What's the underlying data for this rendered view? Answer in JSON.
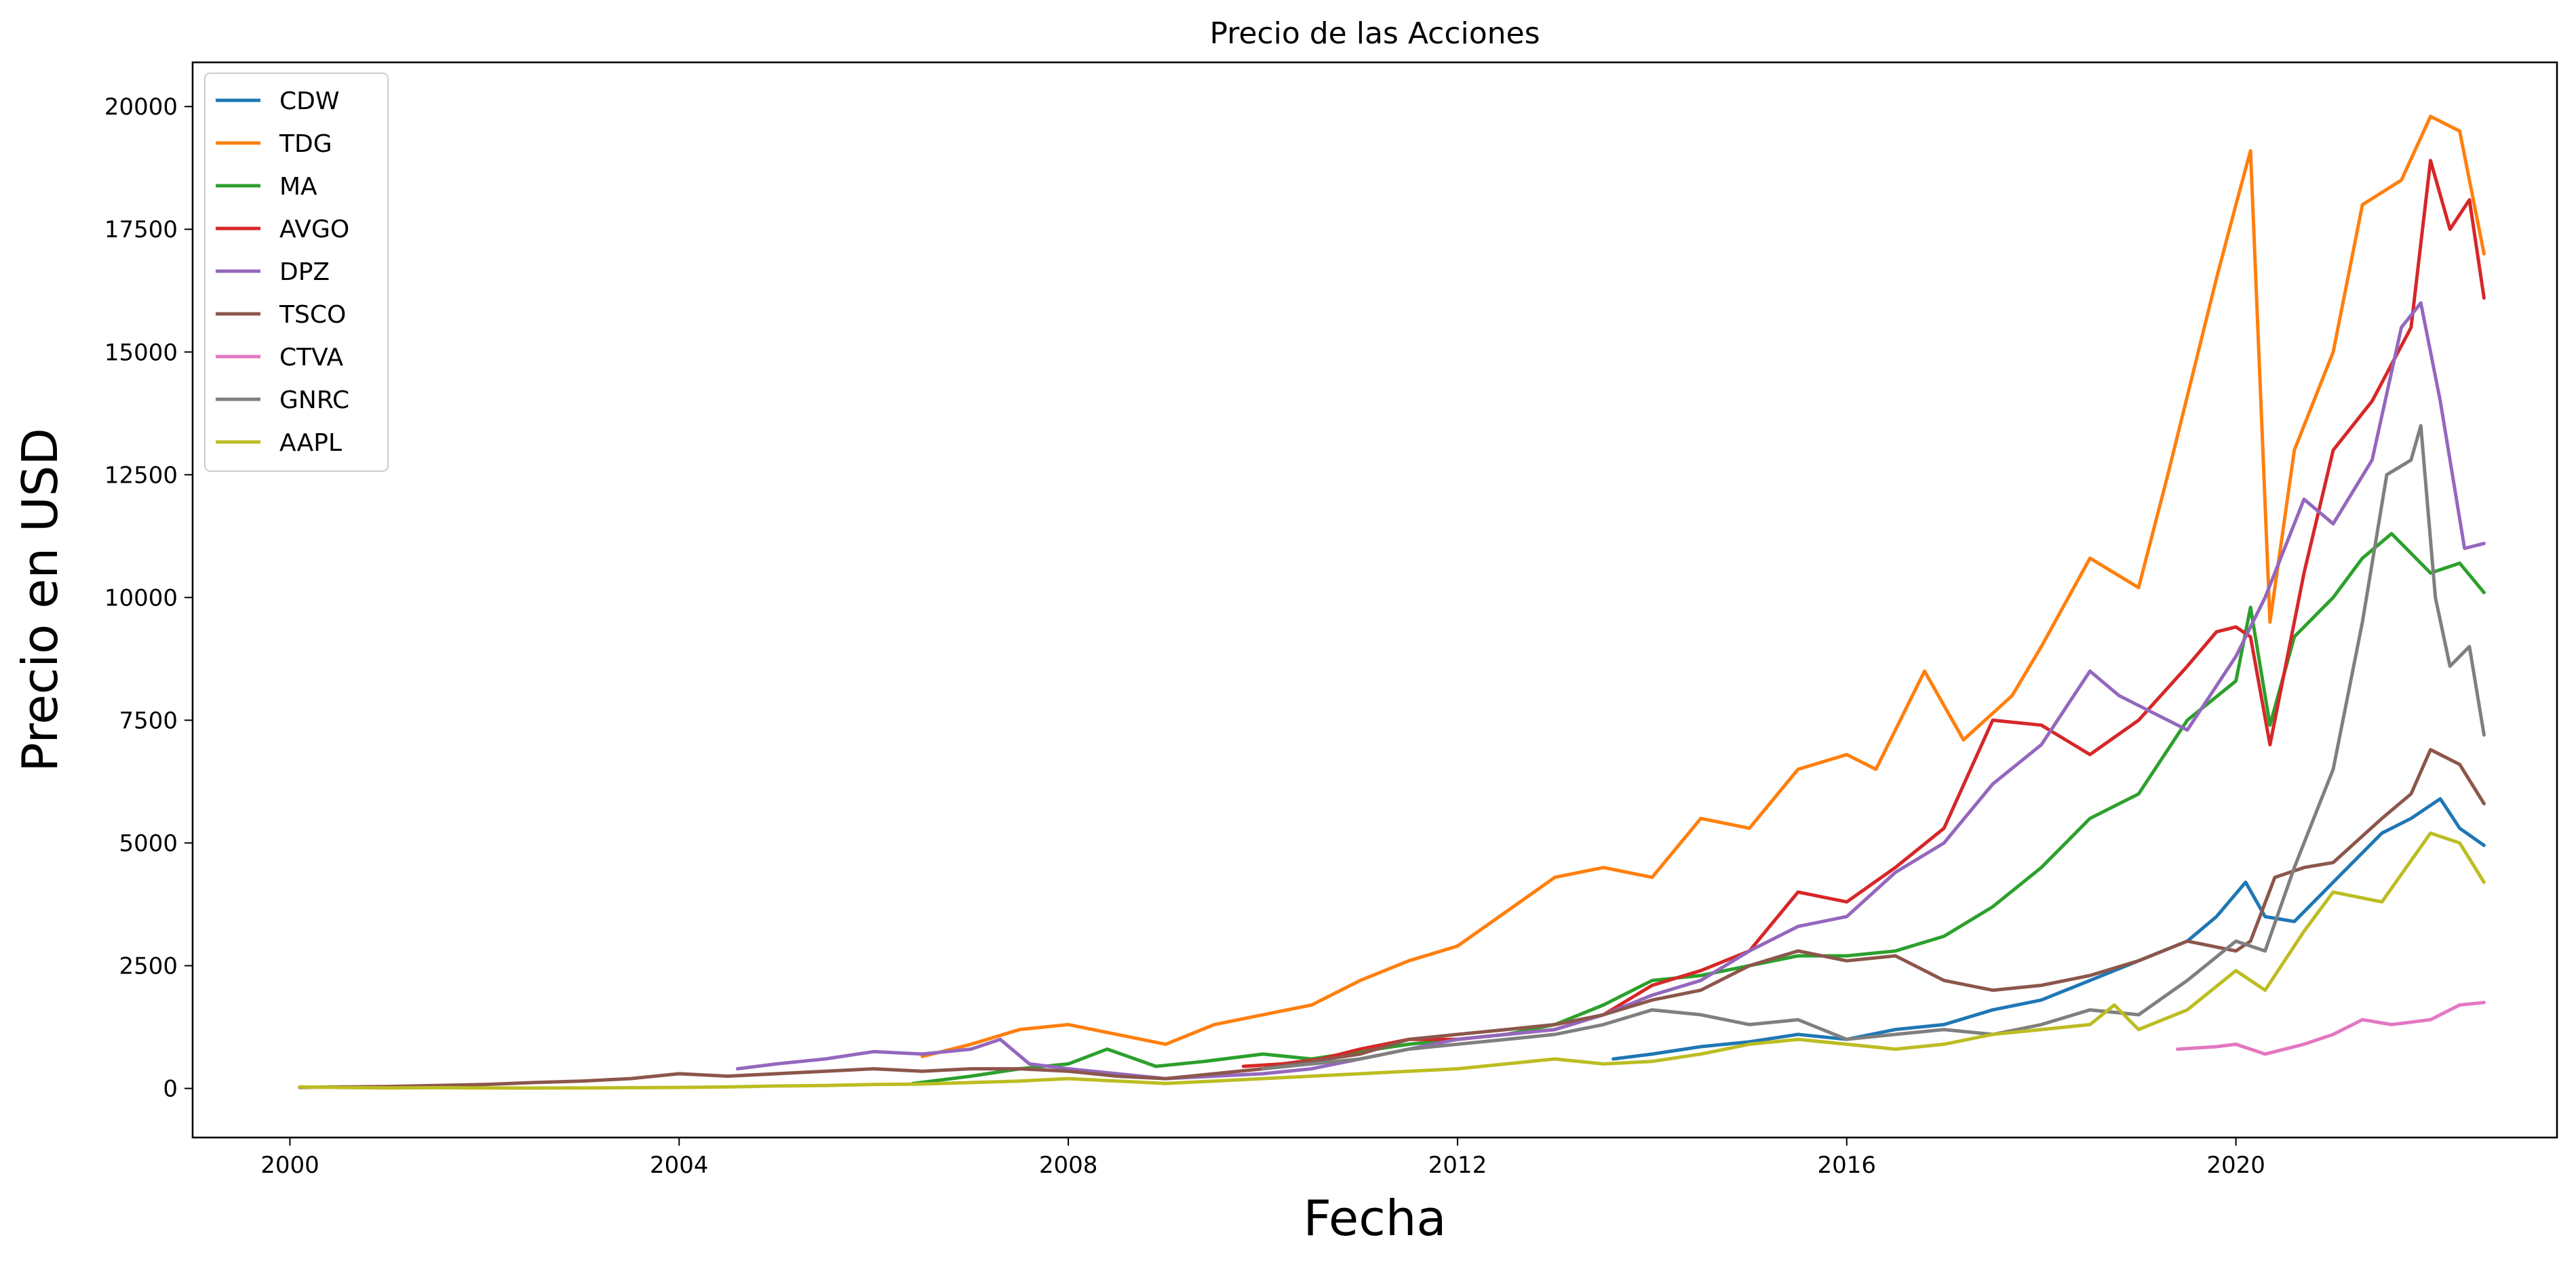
{
  "chart_data": {
    "type": "line",
    "title": "Precio de las Acciones",
    "xlabel": "Fecha",
    "ylabel": "Precio en USD",
    "x_ticks": [
      "2000",
      "2004",
      "2008",
      "2012",
      "2016",
      "2020"
    ],
    "y_ticks": [
      "0",
      "2500",
      "5000",
      "7500",
      "10000",
      "12500",
      "15000",
      "17500",
      "20000"
    ],
    "xlim": [
      1999.0,
      2023.3
    ],
    "ylim": [
      -1000,
      20900
    ],
    "grid": false,
    "legend_position": "top-left",
    "series": [
      {
        "name": "CDW",
        "color": "#1f77b4",
        "x": [
          2013.6,
          2014.0,
          2014.5,
          2015.0,
          2015.5,
          2016.0,
          2016.5,
          2017.0,
          2017.5,
          2018.0,
          2018.5,
          2019.0,
          2019.5,
          2019.8,
          2020.1,
          2020.3,
          2020.6,
          2021.0,
          2021.5,
          2021.8,
          2022.1,
          2022.3,
          2022.55
        ],
        "y": [
          600,
          700,
          850,
          950,
          1100,
          1000,
          1200,
          1300,
          1600,
          1800,
          2200,
          2600,
          3000,
          3500,
          4200,
          3500,
          3400,
          4200,
          5200,
          5500,
          5900,
          5300,
          4950
        ]
      },
      {
        "name": "TDG",
        "color": "#ff7f0e",
        "x": [
          2006.5,
          2007.0,
          2007.5,
          2008.0,
          2008.5,
          2009.0,
          2009.5,
          2010.0,
          2010.5,
          2011.0,
          2011.5,
          2012.0,
          2012.5,
          2013.0,
          2013.5,
          2014.0,
          2014.5,
          2015.0,
          2015.5,
          2016.0,
          2016.3,
          2016.8,
          2017.2,
          2017.7,
          2018.0,
          2018.5,
          2019.0,
          2019.3,
          2019.8,
          2020.0,
          2020.15,
          2020.35,
          2020.6,
          2021.0,
          2021.3,
          2021.7,
          2022.0,
          2022.3,
          2022.55
        ],
        "y": [
          650,
          900,
          1200,
          1300,
          1100,
          900,
          1300,
          1500,
          1700,
          2200,
          2600,
          2900,
          3600,
          4300,
          4500,
          4300,
          5500,
          5300,
          6500,
          6800,
          6500,
          8500,
          7100,
          8000,
          9000,
          10800,
          10200,
          12500,
          16500,
          18000,
          19100,
          9500,
          13000,
          15000,
          18000,
          18500,
          19800,
          19500,
          17000
        ]
      },
      {
        "name": "MA",
        "color": "#2ca02c",
        "x": [
          2006.4,
          2007.0,
          2007.5,
          2008.0,
          2008.4,
          2008.9,
          2009.4,
          2010.0,
          2010.5,
          2011.0,
          2011.5,
          2012.0,
          2012.5,
          2013.0,
          2013.5,
          2014.0,
          2014.5,
          2015.0,
          2015.5,
          2016.0,
          2016.5,
          2017.0,
          2017.5,
          2018.0,
          2018.5,
          2019.0,
          2019.5,
          2020.0,
          2020.15,
          2020.35,
          2020.6,
          2021.0,
          2021.3,
          2021.6,
          2022.0,
          2022.3,
          2022.55
        ],
        "y": [
          100,
          250,
          400,
          500,
          800,
          450,
          550,
          700,
          600,
          750,
          900,
          1000,
          1100,
          1300,
          1700,
          2200,
          2300,
          2500,
          2700,
          2700,
          2800,
          3100,
          3700,
          4500,
          5500,
          6000,
          7500,
          8300,
          9800,
          7400,
          9200,
          10000,
          10800,
          11300,
          10500,
          10700,
          10100
        ]
      },
      {
        "name": "AVGO",
        "color": "#d62728",
        "x": [
          2009.8,
          2010.2,
          2010.6,
          2011.0,
          2011.5,
          2012.0,
          2012.5,
          2013.0,
          2013.5,
          2014.0,
          2014.5,
          2015.0,
          2015.5,
          2016.0,
          2016.5,
          2017.0,
          2017.5,
          2018.0,
          2018.5,
          2019.0,
          2019.5,
          2019.8,
          2020.0,
          2020.15,
          2020.35,
          2020.7,
          2021.0,
          2021.4,
          2021.8,
          2022.0,
          2022.2,
          2022.4,
          2022.55
        ],
        "y": [
          450,
          500,
          600,
          800,
          1000,
          1000,
          1100,
          1200,
          1500,
          2100,
          2400,
          2800,
          4000,
          3800,
          4500,
          5300,
          7500,
          7400,
          6800,
          7500,
          8600,
          9300,
          9400,
          9200,
          7000,
          10500,
          13000,
          14000,
          15500,
          18900,
          17500,
          18100,
          16100
        ]
      },
      {
        "name": "DPZ",
        "color": "#9467bd",
        "x": [
          2004.6,
          2005.0,
          2005.5,
          2006.0,
          2006.5,
          2007.0,
          2007.3,
          2007.6,
          2008.0,
          2008.5,
          2009.0,
          2009.5,
          2010.0,
          2010.5,
          2011.0,
          2011.5,
          2012.0,
          2012.5,
          2013.0,
          2013.5,
          2014.0,
          2014.5,
          2015.0,
          2015.5,
          2016.0,
          2016.5,
          2017.0,
          2017.5,
          2018.0,
          2018.5,
          2018.8,
          2019.0,
          2019.5,
          2020.0,
          2020.3,
          2020.7,
          2021.0,
          2021.4,
          2021.7,
          2021.9,
          2022.1,
          2022.35,
          2022.55
        ],
        "y": [
          400,
          500,
          600,
          750,
          700,
          800,
          1000,
          500,
          400,
          300,
          200,
          250,
          300,
          400,
          600,
          800,
          1000,
          1100,
          1200,
          1500,
          1900,
          2200,
          2800,
          3300,
          3500,
          4400,
          5000,
          6200,
          7000,
          8500,
          8000,
          7800,
          7300,
          8800,
          10000,
          12000,
          11500,
          12800,
          15500,
          16000,
          14000,
          11000,
          11100
        ]
      },
      {
        "name": "TSCO",
        "color": "#8c564b",
        "x": [
          2000.1,
          2000.5,
          2001.0,
          2001.5,
          2002.0,
          2002.5,
          2003.0,
          2003.5,
          2004.0,
          2004.5,
          2005.0,
          2005.5,
          2006.0,
          2006.5,
          2007.0,
          2007.5,
          2008.0,
          2008.5,
          2009.0,
          2009.5,
          2010.0,
          2010.5,
          2011.0,
          2011.5,
          2012.0,
          2012.5,
          2013.0,
          2013.5,
          2014.0,
          2014.5,
          2015.0,
          2015.5,
          2016.0,
          2016.5,
          2017.0,
          2017.5,
          2018.0,
          2018.5,
          2019.0,
          2019.5,
          2020.0,
          2020.15,
          2020.4,
          2020.7,
          2021.0,
          2021.5,
          2021.8,
          2022.0,
          2022.3,
          2022.55
        ],
        "y": [
          20,
          30,
          40,
          60,
          80,
          120,
          150,
          200,
          300,
          250,
          300,
          350,
          400,
          350,
          400,
          400,
          350,
          250,
          200,
          300,
          400,
          550,
          700,
          1000,
          1100,
          1200,
          1300,
          1500,
          1800,
          2000,
          2500,
          2800,
          2600,
          2700,
          2200,
          2000,
          2100,
          2300,
          2600,
          3000,
          2800,
          3000,
          4300,
          4500,
          4600,
          5500,
          6000,
          6900,
          6600,
          5800
        ]
      },
      {
        "name": "CTVA",
        "color": "#e377c2",
        "x": [
          2019.4,
          2019.8,
          2020.0,
          2020.3,
          2020.7,
          2021.0,
          2021.3,
          2021.6,
          2022.0,
          2022.3,
          2022.55
        ],
        "y": [
          800,
          850,
          900,
          700,
          900,
          1100,
          1400,
          1300,
          1400,
          1700,
          1750
        ]
      },
      {
        "name": "GNRC",
        "color": "#7f7f7f",
        "x": [
          2010.0,
          2010.5,
          2011.0,
          2011.5,
          2012.0,
          2012.5,
          2013.0,
          2013.5,
          2014.0,
          2014.5,
          2015.0,
          2015.5,
          2016.0,
          2016.5,
          2017.0,
          2017.5,
          2018.0,
          2018.5,
          2019.0,
          2019.5,
          2020.0,
          2020.3,
          2020.6,
          2021.0,
          2021.3,
          2021.55,
          2021.8,
          2021.9,
          2022.05,
          2022.2,
          2022.4,
          2022.55
        ],
        "y": [
          400,
          500,
          600,
          800,
          900,
          1000,
          1100,
          1300,
          1600,
          1500,
          1300,
          1400,
          1000,
          1100,
          1200,
          1100,
          1300,
          1600,
          1500,
          2200,
          3000,
          2800,
          4500,
          6500,
          9500,
          12500,
          12800,
          13500,
          10000,
          8600,
          9000,
          7200
        ]
      },
      {
        "name": "AAPL",
        "color": "#bcbd22",
        "x": [
          2000.1,
          2000.5,
          2001.0,
          2001.5,
          2002.0,
          2002.5,
          2003.0,
          2003.5,
          2004.0,
          2004.5,
          2005.0,
          2005.5,
          2006.0,
          2006.5,
          2007.0,
          2007.5,
          2008.0,
          2008.5,
          2009.0,
          2009.5,
          2010.0,
          2010.5,
          2011.0,
          2011.5,
          2012.0,
          2012.5,
          2013.0,
          2013.5,
          2014.0,
          2014.5,
          2015.0,
          2015.5,
          2016.0,
          2016.5,
          2017.0,
          2017.5,
          2018.0,
          2018.5,
          2018.75,
          2019.0,
          2019.5,
          2020.0,
          2020.3,
          2020.7,
          2021.0,
          2021.5,
          2022.0,
          2022.3,
          2022.55
        ],
        "y": [
          30,
          20,
          10,
          15,
          10,
          8,
          10,
          15,
          20,
          30,
          50,
          60,
          80,
          90,
          120,
          150,
          200,
          150,
          100,
          150,
          200,
          250,
          300,
          350,
          400,
          500,
          600,
          500,
          550,
          700,
          900,
          1000,
          900,
          800,
          900,
          1100,
          1200,
          1300,
          1700,
          1200,
          1600,
          2400,
          2000,
          3200,
          4000,
          3800,
          5200,
          5000,
          4200
        ]
      }
    ]
  }
}
